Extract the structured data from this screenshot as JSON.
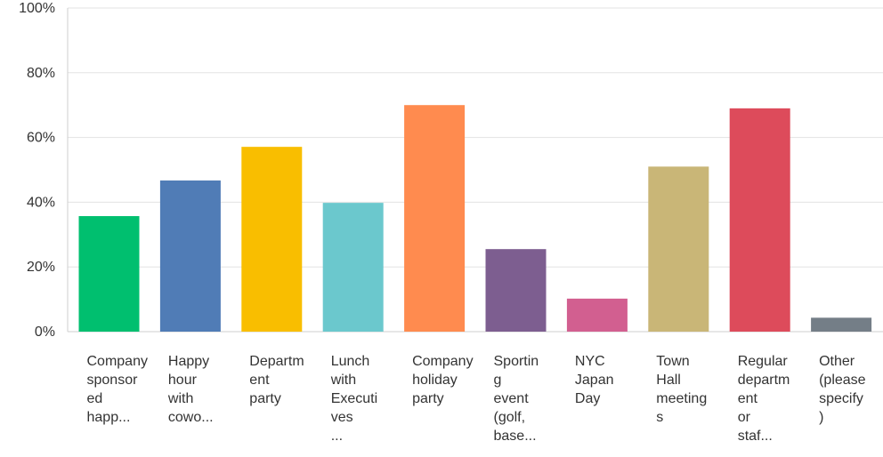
{
  "chart_data": {
    "type": "bar",
    "categories": [
      [
        "Company",
        "sponsor",
        "ed",
        "happ..."
      ],
      [
        "Happy",
        "hour",
        "with",
        "cowo..."
      ],
      [
        "Departm",
        "ent",
        "party"
      ],
      [
        "Lunch",
        "with",
        "Executi",
        "ves",
        "..."
      ],
      [
        "Company",
        "holiday",
        "party"
      ],
      [
        "Sportin",
        "g",
        "event",
        "(golf,",
        "base..."
      ],
      [
        "NYC",
        "Japan",
        "Day"
      ],
      [
        "Town",
        "Hall",
        "meeting",
        "s"
      ],
      [
        "Regular",
        "departm",
        "ent",
        "or",
        "staf..."
      ],
      [
        "Other",
        "(please",
        "specify",
        ")"
      ]
    ],
    "values": [
      35.7,
      46.7,
      57.1,
      39.8,
      70.0,
      25.5,
      10.2,
      51.0,
      69.0,
      4.3
    ],
    "colors": [
      "#00bf6f",
      "#507cb6",
      "#f9be00",
      "#6bc8cd",
      "#ff8b4f",
      "#7d5e90",
      "#d25f90",
      "#c9b677",
      "#dd4b5b",
      "#747e87"
    ],
    "yticks": [
      "0%",
      "20%",
      "40%",
      "60%",
      "80%",
      "100%"
    ],
    "ylim": [
      0,
      100
    ],
    "grid": true,
    "title": "",
    "xlabel": "",
    "ylabel": ""
  }
}
